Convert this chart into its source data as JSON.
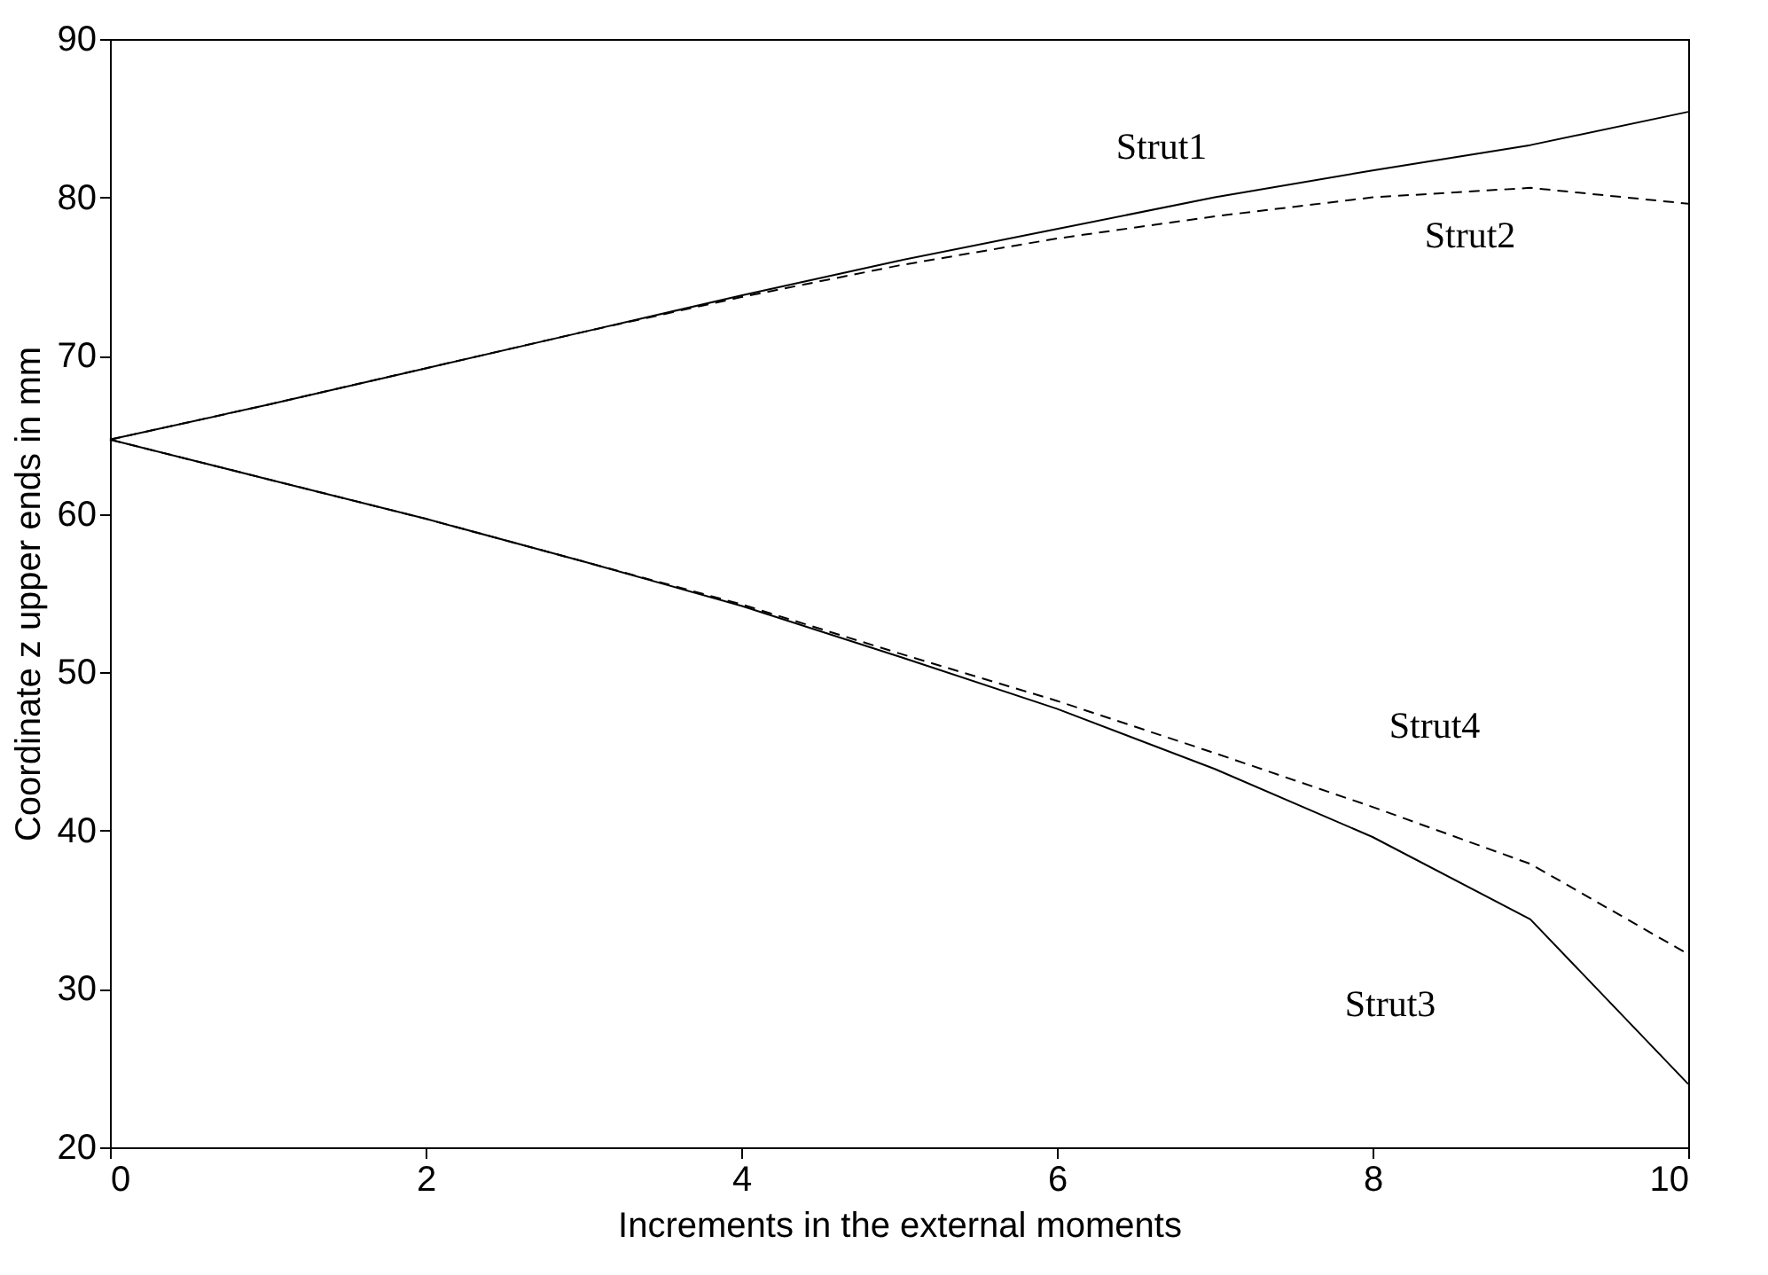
{
  "chart_data": {
    "type": "line",
    "xlabel": "Increments in the external moments",
    "ylabel": "Coordinate z upper ends in mm",
    "x": [
      0,
      1,
      2,
      3,
      4,
      5,
      6,
      7,
      8,
      9,
      10
    ],
    "series": [
      {
        "name": "Strut1",
        "color": "#000000",
        "line_style": "solid",
        "values": [
          64.7,
          66.9,
          69.2,
          71.5,
          73.8,
          76.0,
          78.0,
          80.0,
          81.7,
          83.3,
          85.4
        ]
      },
      {
        "name": "Strut2",
        "color": "#000000",
        "line_style": "dashed",
        "values": [
          64.7,
          66.9,
          69.2,
          71.5,
          73.7,
          75.7,
          77.4,
          78.8,
          80.0,
          80.6,
          79.6
        ]
      },
      {
        "name": "Strut3",
        "color": "#000000",
        "line_style": "solid",
        "values": [
          64.7,
          62.2,
          59.7,
          57.0,
          54.2,
          51.0,
          47.7,
          43.9,
          39.6,
          34.4,
          24.0
        ]
      },
      {
        "name": "Strut4",
        "color": "#000000",
        "line_style": "dashed",
        "values": [
          64.7,
          62.2,
          59.7,
          57.0,
          54.3,
          51.2,
          48.2,
          44.9,
          41.5,
          37.9,
          32.2
        ]
      }
    ],
    "xlim": [
      0,
      10
    ],
    "xticks": [
      0,
      2,
      4,
      6,
      8,
      10
    ],
    "ylim": [
      20,
      90
    ],
    "yticks": [
      20,
      30,
      40,
      50,
      60,
      70,
      80,
      90
    ],
    "grid": false,
    "marker": "none"
  }
}
